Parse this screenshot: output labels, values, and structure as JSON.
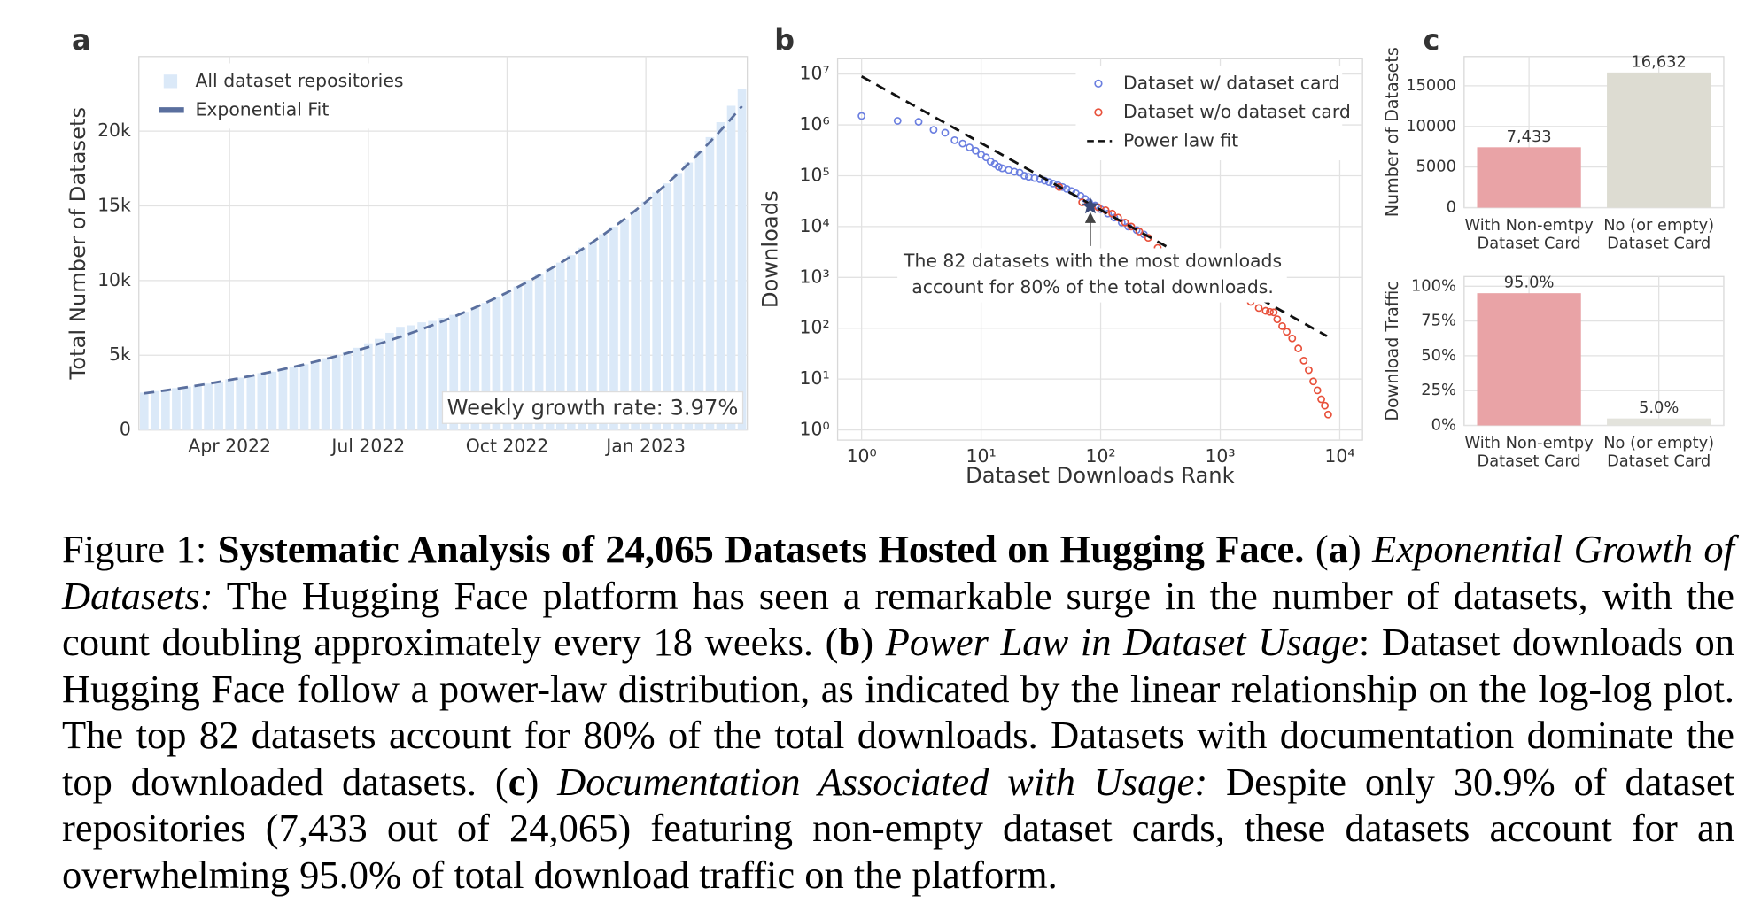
{
  "panel_labels": [
    "a",
    "b",
    "c"
  ],
  "chart_data": [
    {
      "type": "bar",
      "ylabel": "Total Number of Datasets",
      "grid": true,
      "legend": "upper left",
      "x": [
        1,
        2,
        3,
        4,
        5,
        6,
        7,
        8,
        9,
        10,
        11,
        12,
        13,
        14,
        15,
        16,
        17,
        18,
        19,
        20,
        21,
        22,
        23,
        24,
        25,
        26,
        27,
        28,
        29,
        30,
        31,
        32,
        33,
        34,
        35,
        36,
        37,
        38,
        39,
        40,
        41,
        42,
        43,
        44,
        45,
        46,
        47,
        48,
        49,
        50,
        51,
        52,
        53,
        54,
        55,
        56,
        57
      ],
      "xlim": [
        0.5,
        57.5
      ],
      "xticks": [
        {
          "value": 9,
          "label": "Apr 2022"
        },
        {
          "value": 22,
          "label": "Jul 2022"
        },
        {
          "value": 35,
          "label": "Oct 2022"
        },
        {
          "value": 48,
          "label": "Jan 2023"
        }
      ],
      "ylim": [
        0,
        25000
      ],
      "yticks": [
        0,
        {
          "value": 5000,
          "label": "5k"
        },
        {
          "value": 10000,
          "label": "10k"
        },
        {
          "value": 15000,
          "label": "15k"
        },
        {
          "value": 20000,
          "label": "20k"
        }
      ],
      "series": [
        {
          "name": "All dataset repositories",
          "type": "bar",
          "color": "#dbe9f8",
          "values": [
            2500,
            2600,
            2700,
            2800,
            2900,
            3000,
            3100,
            3200,
            3400,
            3500,
            3600,
            3800,
            3900,
            4100,
            4200,
            4400,
            4600,
            4800,
            5000,
            5200,
            5500,
            5800,
            6100,
            6500,
            6900,
            7000,
            7200,
            7300,
            7500,
            7700,
            7900,
            8200,
            8500,
            8900,
            9200,
            9600,
            10000,
            10400,
            10800,
            11200,
            11700,
            12200,
            12600,
            13100,
            13600,
            14100,
            14700,
            15300,
            15900,
            16500,
            17200,
            17900,
            18700,
            19600,
            20600,
            21700,
            22800
          ]
        },
        {
          "name": "Exponential Fit",
          "type": "line",
          "color": "#5a6f9e",
          "dashed": true,
          "values": [
            2450,
            2547,
            2648,
            2754,
            2863,
            2977,
            3095,
            3218,
            3345,
            3478,
            3616,
            3759,
            3909,
            4064,
            4225,
            4393,
            4567,
            4748,
            4937,
            5133,
            5336,
            5548,
            5768,
            5997,
            6235,
            6483,
            6740,
            7008,
            7286,
            7575,
            7876,
            8188,
            8513,
            8851,
            9202,
            9568,
            9947,
            10342,
            10753,
            11180,
            11623,
            12085,
            12564,
            13063,
            13581,
            14121,
            14681,
            15264,
            15870,
            16500,
            17155,
            17836,
            18544,
            19280,
            20045,
            20841,
            21668
          ]
        }
      ],
      "annotation": "Weekly growth rate: 3.97%"
    },
    {
      "type": "scatter",
      "xlabel": "Dataset Downloads Rank",
      "ylabel": "Downloads",
      "grid": true,
      "log_x": true,
      "log_y": true,
      "legend": "upper right",
      "xlim": [
        0.63,
        15500
      ],
      "xticks": [
        {
          "value": 1,
          "label": "10⁰"
        },
        {
          "value": 10,
          "label": "10¹"
        },
        {
          "value": 100,
          "label": "10²"
        },
        {
          "value": 1000,
          "label": "10³"
        },
        {
          "value": 10000,
          "label": "10⁴"
        }
      ],
      "ylim": [
        0.63,
        20000000
      ],
      "yticks": [
        {
          "value": 1,
          "label": "10⁰"
        },
        {
          "value": 10,
          "label": "10¹"
        },
        {
          "value": 100,
          "label": "10²"
        },
        {
          "value": 1000,
          "label": "10³"
        },
        {
          "value": 10000,
          "label": "10⁴"
        },
        {
          "value": 100000,
          "label": "10⁵"
        },
        {
          "value": 1000000,
          "label": "10⁶"
        },
        {
          "value": 10000000,
          "label": "10⁷"
        }
      ],
      "series": [
        {
          "name": "Dataset w/ dataset card",
          "type": "scatter",
          "color": "#6b7fe0",
          "x": [
            1,
            2,
            3,
            4,
            5,
            6,
            7,
            8,
            9,
            10,
            11,
            12,
            13,
            14,
            15,
            17,
            19,
            21,
            23,
            25,
            28,
            31,
            34,
            37,
            40,
            44,
            48,
            52,
            57,
            62,
            68,
            74,
            80,
            90,
            100,
            115,
            130,
            150,
            170,
            200,
            230
          ],
          "values": [
            1500000,
            1200000,
            1150000,
            800000,
            700000,
            500000,
            430000,
            360000,
            310000,
            260000,
            230000,
            190000,
            170000,
            150000,
            140000,
            130000,
            120000,
            115000,
            100000,
            95000,
            90000,
            85000,
            80000,
            75000,
            70000,
            65000,
            60000,
            55000,
            50000,
            45000,
            40000,
            35000,
            30000,
            26000,
            22000,
            18000,
            15000,
            12000,
            10000,
            8500,
            7000
          ]
        },
        {
          "name": "Dataset w/o dataset card",
          "type": "scatter",
          "color": "#e8503a",
          "x": [
            45,
            70,
            95,
            110,
            125,
            140,
            160,
            180,
            210,
            250,
            300,
            350,
            400,
            500,
            600,
            700,
            800,
            1000,
            1200,
            1500,
            1800,
            2100,
            2400,
            2600,
            2800,
            3000,
            3300,
            3600,
            4000,
            4500,
            5000,
            5500,
            6000,
            6500,
            7000,
            7500,
            8000
          ],
          "values": [
            60000,
            30000,
            24000,
            21000,
            18000,
            15000,
            12000,
            10000,
            8000,
            6000,
            3800,
            3000,
            2200,
            1350,
            1000,
            850,
            750,
            630,
            520,
            420,
            330,
            250,
            220,
            210,
            205,
            150,
            110,
            85,
            63,
            40,
            23,
            15,
            9,
            6,
            4,
            3,
            2
          ]
        },
        {
          "name": "Power law fit",
          "type": "line",
          "color": "#111111",
          "dashed": true,
          "x": [
            1,
            7800
          ],
          "values": [
            9000000,
            70
          ]
        }
      ],
      "highlight": {
        "x": 82,
        "y": 25000
      },
      "annotation": [
        "The 82 datasets with the most downloads",
        "account for 80% of the total downloads."
      ]
    },
    {
      "type": "bar",
      "ylabel": "Number of Datasets",
      "grid": true,
      "categories": [
        [
          "With Non-emtpy",
          "Dataset Card"
        ],
        [
          "No (or empty)",
          "Dataset Card"
        ]
      ],
      "values": [
        7433,
        16632
      ],
      "value_labels": [
        "7,433",
        "16,632"
      ],
      "colors": [
        "#e9a3a6",
        "#dddcd2"
      ],
      "ylim": [
        0,
        18600
      ],
      "yticks": [
        0,
        5000,
        10000,
        15000
      ]
    },
    {
      "type": "bar",
      "ylabel": "Download Traffic",
      "grid": true,
      "categories": [
        [
          "With Non-emtpy",
          "Dataset Card"
        ],
        [
          "No (or empty)",
          "Dataset Card"
        ]
      ],
      "values": [
        95,
        5
      ],
      "value_labels": [
        "95.0%",
        "5.0%"
      ],
      "colors": [
        "#e9a3a6",
        "#e3e3dc"
      ],
      "ylim": [
        0,
        107
      ],
      "yticks": [
        {
          "value": 0,
          "label": "0%"
        },
        {
          "value": 25,
          "label": "25%"
        },
        {
          "value": 50,
          "label": "50%"
        },
        {
          "value": 75,
          "label": "75%"
        },
        {
          "value": 100,
          "label": "100%"
        }
      ]
    }
  ],
  "caption": [
    {
      "text": "Figure 1: ",
      "style": "normal"
    },
    {
      "text": "Systematic Analysis of 24,065 Datasets Hosted on Hugging Face.",
      "style": "bold"
    },
    {
      "text": " (",
      "style": "normal"
    },
    {
      "text": "a",
      "style": "bold"
    },
    {
      "text": ") ",
      "style": "normal"
    },
    {
      "text": "Exponential Growth of Datasets:",
      "style": "italic"
    },
    {
      "text": " The Hugging Face platform has seen a remarkable surge in the number of datasets, with the count doubling approximately every 18 weeks. (",
      "style": "normal"
    },
    {
      "text": "b",
      "style": "bold"
    },
    {
      "text": ") ",
      "style": "normal"
    },
    {
      "text": "Power Law in Dataset Usage",
      "style": "italic"
    },
    {
      "text": ": Dataset downloads on Hugging Face follow a power-law distribution, as indicated by the linear relationship on the log-log plot. The top 82 datasets account for 80% of the total downloads. Datasets with documentation dominate the top downloaded datasets. (",
      "style": "normal"
    },
    {
      "text": "c",
      "style": "bold"
    },
    {
      "text": ") ",
      "style": "normal"
    },
    {
      "text": "Documentation Associated with Usage:",
      "style": "italic"
    },
    {
      "text": " Despite only 30.9% of dataset repositories (7,433 out of 24,065) featuring non-empty dataset cards, these datasets account for an overwhelming 95.0% of total download traffic on the platform.",
      "style": "normal"
    }
  ]
}
